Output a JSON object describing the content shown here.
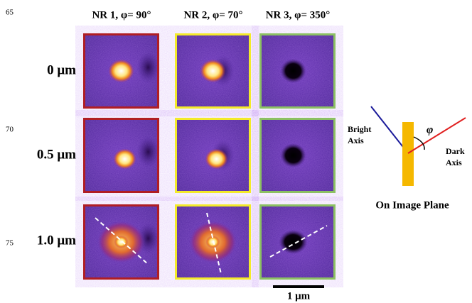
{
  "line_numbers": [
    "65",
    "70",
    "75"
  ],
  "columns": [
    "NR 1, φ= 90°",
    "NR 2, φ= 70°",
    "NR 3, φ= 350°"
  ],
  "rows": [
    "0 μm",
    "0.5 μm",
    "1.0 μm"
  ],
  "scale_bar": "1 μm",
  "diagram": {
    "bright_axis": [
      "Bright",
      "Axis"
    ],
    "dark_axis": [
      "Dark",
      "Axis"
    ],
    "angle": "φ",
    "caption": "On Image Plane"
  }
}
